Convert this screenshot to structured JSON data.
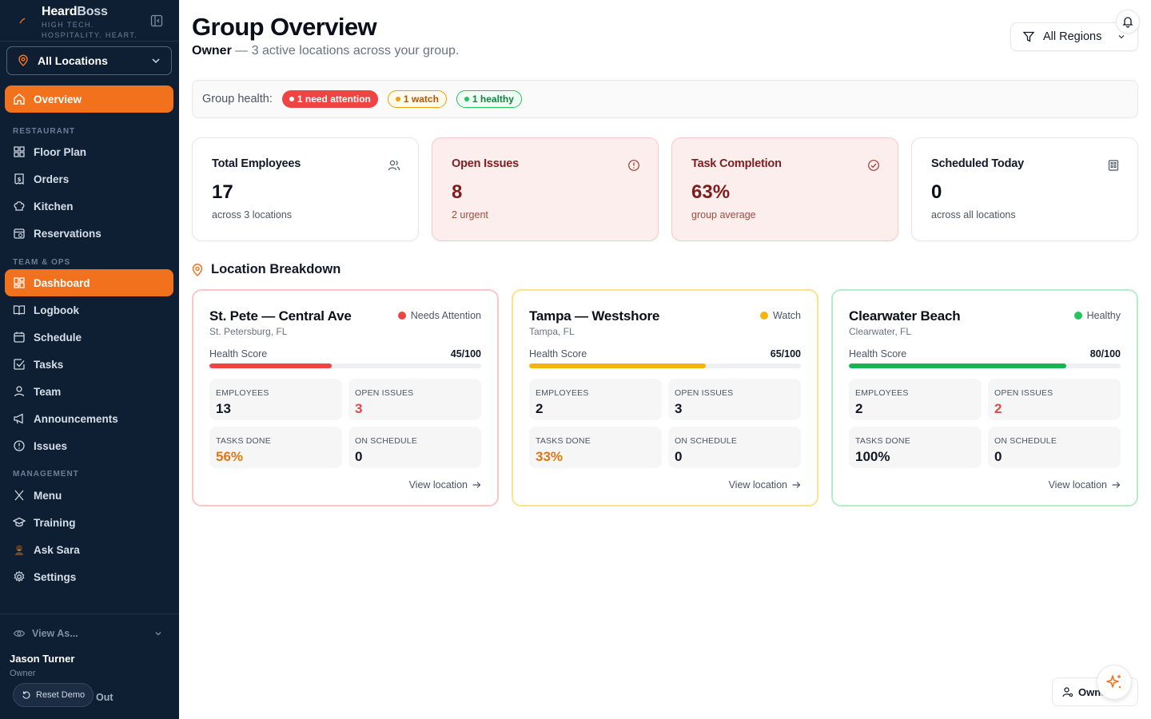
{
  "brand": {
    "name_a": "Heard",
    "name_b": "Boss",
    "tagline_1": "HIGH TECH.",
    "tagline_2": "HOSPITALITY. HEART."
  },
  "location_selector": {
    "value": "All Locations"
  },
  "nav": {
    "overview": "Overview",
    "section_restaurant": "RESTAURANT",
    "floor_plan": "Floor Plan",
    "orders": "Orders",
    "kitchen": "Kitchen",
    "reservations": "Reservations",
    "section_team": "TEAM & OPS",
    "dashboard": "Dashboard",
    "logbook": "Logbook",
    "schedule": "Schedule",
    "tasks": "Tasks",
    "team": "Team",
    "announcements": "Announcements",
    "issues": "Issues",
    "section_management": "MANAGEMENT",
    "menu": "Menu",
    "training": "Training",
    "ask_sara": "Ask Sara",
    "settings": "Settings"
  },
  "footer": {
    "view_as": "View As...",
    "user_name": "Jason Turner",
    "user_role": "Owner",
    "reset": "Reset Demo",
    "signout": "Out"
  },
  "header": {
    "title": "Group Overview",
    "role": "Owner",
    "subtitle": " — 3 active locations across your group.",
    "region": "All Regions"
  },
  "health": {
    "label": "Group health:",
    "attention": "1 need attention",
    "watch": "1 watch",
    "healthy": "1 healthy"
  },
  "stats": [
    {
      "title": "Total Employees",
      "value": "17",
      "note": "across 3 locations",
      "icon": "users-icon"
    },
    {
      "title": "Open Issues",
      "value": "8",
      "note": "2 urgent",
      "icon": "alert-circle-icon"
    },
    {
      "title": "Task Completion",
      "value": "63%",
      "note": "group average",
      "icon": "check-circle-icon"
    },
    {
      "title": "Scheduled Today",
      "value": "0",
      "note": "across all locations",
      "icon": "building-icon"
    }
  ],
  "breakdown_title": "Location Breakdown",
  "locations": [
    {
      "name": "St. Pete — Central Ave",
      "city": "St. Petersburg, FL",
      "status": "Needs Attention",
      "status_color": "#ef4444",
      "health_label": "Health Score",
      "health_value": "45/100",
      "health": 45,
      "bar_color": "#ef4444",
      "employees_label": "EMPLOYEES",
      "employees": "13",
      "issues_label": "OPEN ISSUES",
      "issues": "3",
      "tasks_label": "TASKS DONE",
      "tasks": "56%",
      "schedule_label": "ON SCHEDULE",
      "schedule": "0",
      "link": "View location"
    },
    {
      "name": "Tampa — Westshore",
      "city": "Tampa, FL",
      "status": "Watch",
      "status_color": "#f5b40b",
      "health_label": "Health Score",
      "health_value": "65/100",
      "health": 65,
      "bar_color": "#f5b40b",
      "employees_label": "EMPLOYEES",
      "employees": "2",
      "issues_label": "OPEN ISSUES",
      "issues": "3",
      "tasks_label": "TASKS DONE",
      "tasks": "33%",
      "schedule_label": "ON SCHEDULE",
      "schedule": "0",
      "link": "View location"
    },
    {
      "name": "Clearwater Beach",
      "city": "Clearwater, FL",
      "status": "Healthy",
      "status_color": "#22c55e",
      "health_label": "Health Score",
      "health_value": "80/100",
      "health": 80,
      "bar_color": "#16b552",
      "employees_label": "EMPLOYEES",
      "employees": "2",
      "issues_label": "OPEN ISSUES",
      "issues": "2",
      "tasks_label": "TASKS DONE",
      "tasks": "100%",
      "schedule_label": "ON SCHEDULE",
      "schedule": "0",
      "link": "View location"
    }
  ],
  "floating": {
    "owner_chip": "Owner"
  },
  "colors": {
    "accent": "#f2711c",
    "sidebar": "#0f1f33"
  }
}
